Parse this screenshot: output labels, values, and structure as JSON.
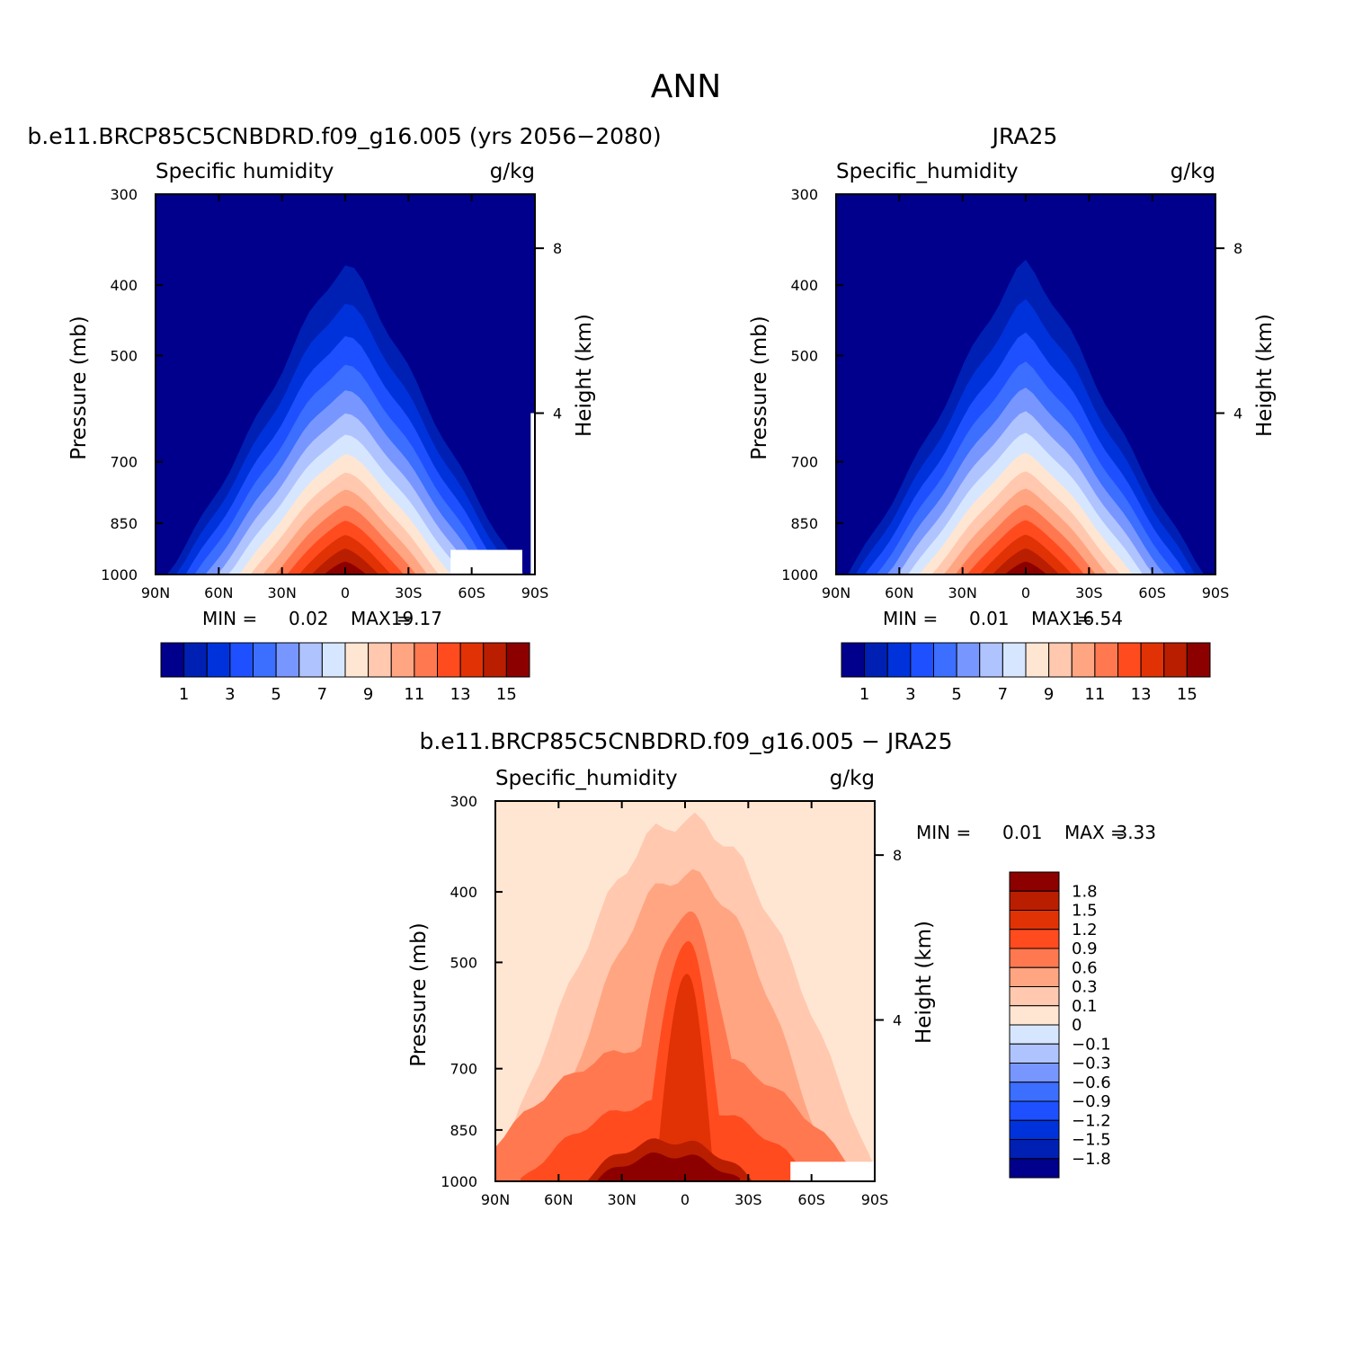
{
  "page_title": "ANN",
  "colors": {
    "abs_levels": [
      "#00008c",
      "#0020b4",
      "#0032dc",
      "#1e50ff",
      "#3c6eff",
      "#7896ff",
      "#afc3ff",
      "#d7e6ff",
      "#ffe6d2",
      "#ffc8af",
      "#ffa582",
      "#ff7850",
      "#ff4b1e",
      "#e13205",
      "#b91e00",
      "#8c0000"
    ],
    "diff_levels": [
      "#00008c",
      "#0020b4",
      "#0032dc",
      "#1e50ff",
      "#3c6eff",
      "#7896ff",
      "#afc3ff",
      "#d7e6ff",
      "#ffe6d2",
      "#ffc8af",
      "#ffa582",
      "#ff7850",
      "#ff4b1e",
      "#e13205",
      "#b91e00",
      "#8c0000"
    ]
  },
  "chart_data": [
    {
      "type": "contour",
      "title": "b.e11.BRCP85C5CNBDRD.f09_g16.005 (yrs 2056−2080)",
      "variable_label": "Specific humidity",
      "units": "g/kg",
      "ylabel": "Pressure (mb)",
      "ylabel_right": "Height (km)",
      "x_ticks": [
        "90N",
        "60N",
        "30N",
        "0",
        "30S",
        "60S",
        "90S"
      ],
      "y_ticks": [
        "300",
        "400",
        "500",
        "700",
        "850",
        "1000"
      ],
      "y_ticks_right": [
        "8",
        "4"
      ],
      "min_label": "MIN =",
      "min_value": "0.02",
      "max_label": "MAX =",
      "max_value": "19.17",
      "colorbar_labels": [
        "1",
        "3",
        "5",
        "7",
        "9",
        "11",
        "13",
        "15"
      ],
      "peak_level_index": 15,
      "peak_center_lat": 0,
      "layer_widths_deg": [
        60,
        55,
        50,
        46,
        42,
        38,
        34,
        31,
        28,
        26,
        23,
        21,
        18,
        15,
        12
      ]
    },
    {
      "type": "contour",
      "title": "JRA25",
      "variable_label": "Specific_humidity",
      "units": "g/kg",
      "ylabel": "Pressure (mb)",
      "ylabel_right": "Height (km)",
      "x_ticks": [
        "90N",
        "60N",
        "30N",
        "0",
        "30S",
        "60S",
        "90S"
      ],
      "y_ticks": [
        "300",
        "400",
        "500",
        "700",
        "850",
        "1000"
      ],
      "y_ticks_right": [
        "8",
        "4"
      ],
      "min_label": "MIN =",
      "min_value": "0.01",
      "max_label": "MAX =",
      "max_value": "16.54",
      "colorbar_labels": [
        "1",
        "3",
        "5",
        "7",
        "9",
        "11",
        "13",
        "15"
      ],
      "peak_level_index": 15,
      "peak_center_lat": 0
    },
    {
      "type": "contour",
      "title": "b.e11.BRCP85C5CNBDRD.f09_g16.005 − JRA25",
      "variable_label": "Specific_humidity",
      "units": "g/kg",
      "ylabel": "Pressure (mb)",
      "ylabel_right": "Height (km)",
      "x_ticks": [
        "90N",
        "60N",
        "30N",
        "0",
        "30S",
        "60S",
        "90S"
      ],
      "y_ticks": [
        "300",
        "400",
        "500",
        "700",
        "850",
        "1000"
      ],
      "y_ticks_right": [
        "8",
        "4"
      ],
      "min_label": "MIN =",
      "min_value": "0.01",
      "max_label": "MAX =",
      "max_value": "3.33",
      "colorbar_labels": [
        "1.8",
        "1.5",
        "1.2",
        "0.9",
        "0.6",
        "0.3",
        "0.1",
        "0",
        "−0.1",
        "−0.3",
        "−0.6",
        "−0.9",
        "−1.2",
        "−1.5",
        "−1.8"
      ]
    }
  ]
}
